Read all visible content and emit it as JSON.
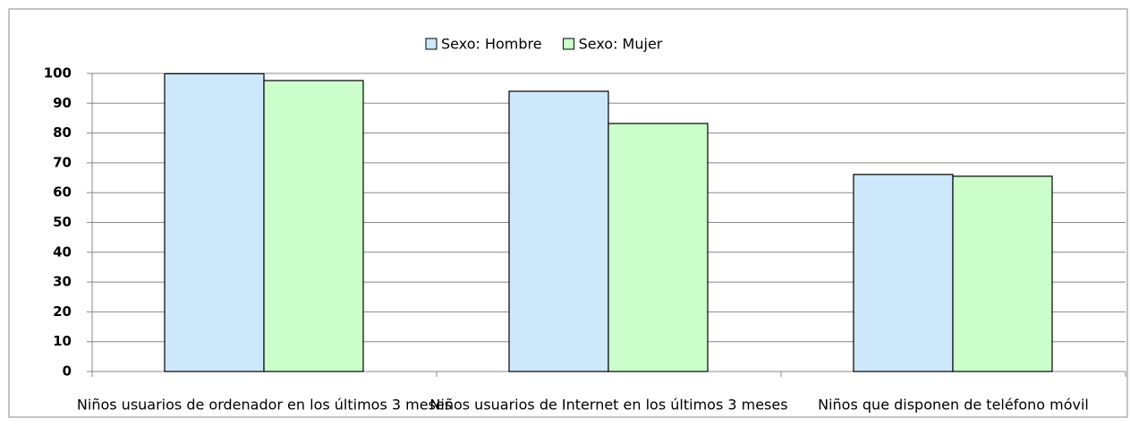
{
  "chart_data": {
    "type": "bar",
    "categories": [
      "Niños usuarios de ordenador en los  últimos 3 meses",
      "Niños usuarios de Internet en los  últimos 3 meses",
      "Niños que disponen de teléfono móvil"
    ],
    "series": [
      {
        "name": "Sexo: Hombre",
        "color": "#cce8fa",
        "values": [
          99.9,
          94.0,
          66.1
        ]
      },
      {
        "name": "Sexo: Mujer",
        "color": "#ccfecc",
        "values": [
          97.6,
          83.2,
          65.5
        ]
      }
    ],
    "ylim": [
      0,
      100
    ],
    "yticks": [
      0,
      10,
      20,
      30,
      40,
      50,
      60,
      70,
      80,
      90,
      100
    ],
    "grid": true,
    "legend": "top"
  }
}
